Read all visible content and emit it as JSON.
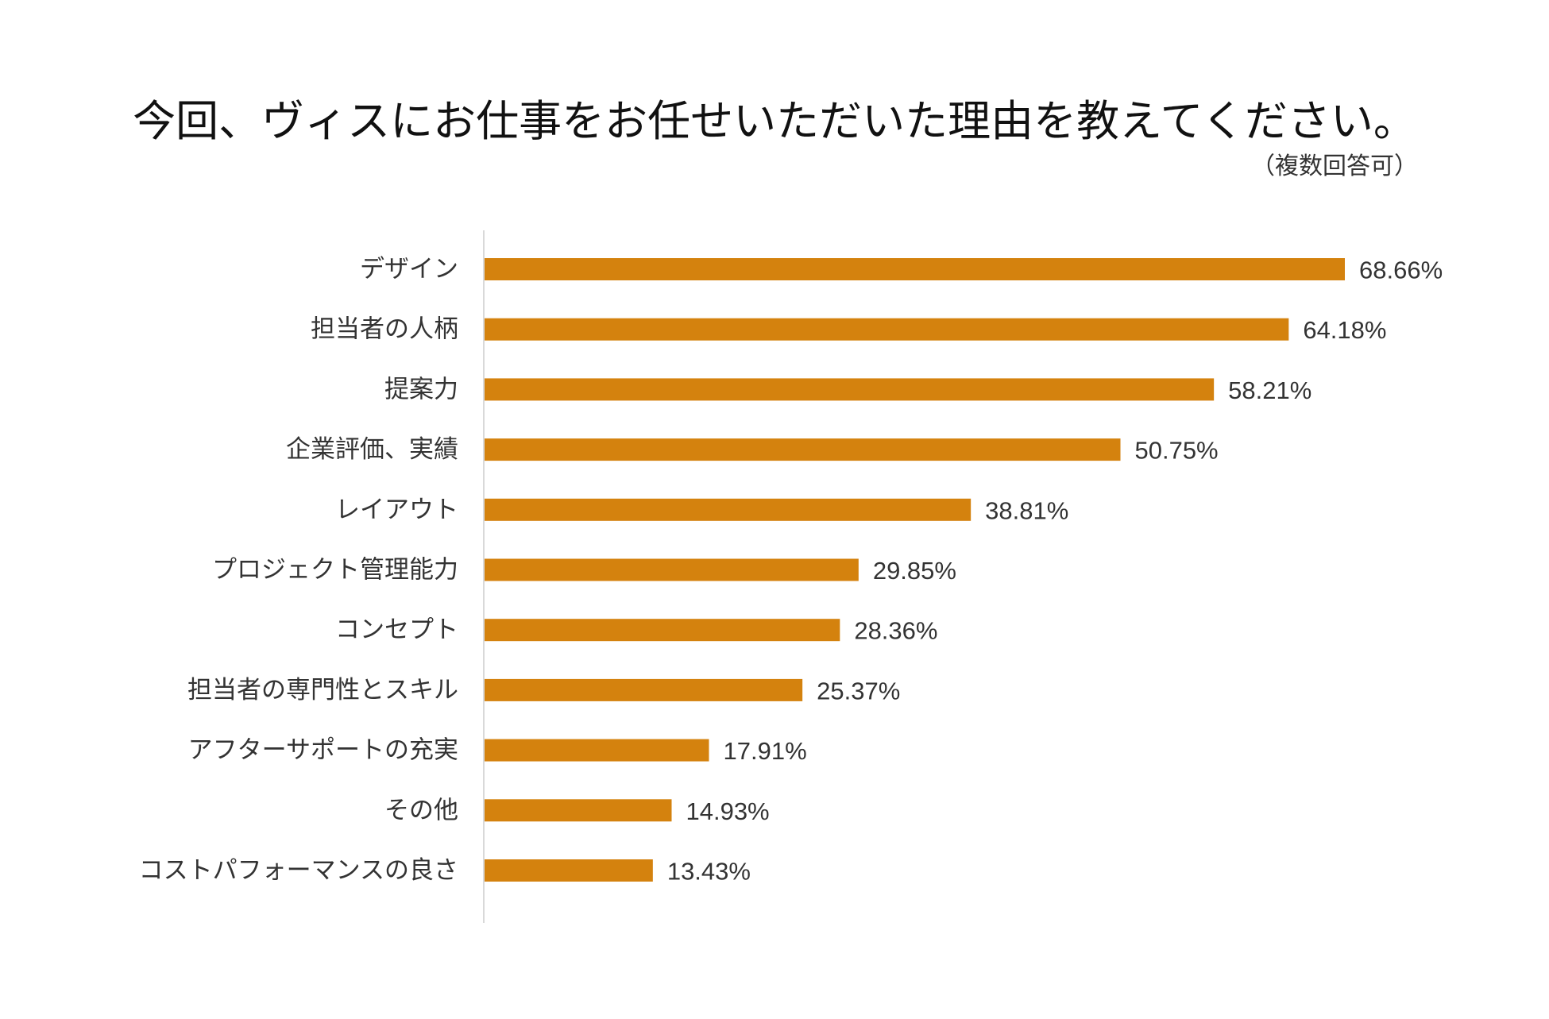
{
  "chart_data": {
    "type": "bar",
    "orientation": "horizontal",
    "title": "今回、ヴィスにお仕事をお任せいただいた理由を教えてください。",
    "subtitle": "（複数回答可）",
    "categories": [
      "デザイン",
      "担当者の人柄",
      "提案力",
      "企業評価、実績",
      "レイアウト",
      "プロジェクト管理能力",
      "コンセプト",
      "担当者の専門性とスキル",
      "アフターサポートの充実",
      "その他",
      "コストパフォーマンスの良さ"
    ],
    "values": [
      68.66,
      64.18,
      58.21,
      50.75,
      38.81,
      29.85,
      28.36,
      25.37,
      17.91,
      14.93,
      13.43
    ],
    "value_labels": [
      "68.66%",
      "64.18%",
      "58.21%",
      "50.75%",
      "38.81%",
      "29.85%",
      "28.36%",
      "25.37%",
      "17.91%",
      "14.93%",
      "13.43%"
    ],
    "xlim": [
      0,
      80
    ],
    "xlabel": "",
    "ylabel": "",
    "grid": false,
    "legend": "none",
    "bar_color": "#D4820E",
    "axis_color": "#d9d9d9"
  }
}
